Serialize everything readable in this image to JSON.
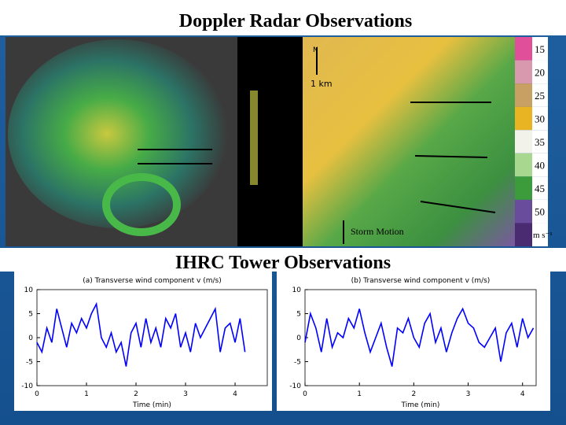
{
  "title": "Doppler Radar Observations",
  "radar": {
    "north": "N",
    "scale": "1 km",
    "storm_motion": "Storm Motion",
    "legend": {
      "labels": [
        "15",
        "20",
        "25",
        "30",
        "35",
        "40",
        "45",
        "50"
      ],
      "colors": [
        "#e0509a",
        "#d898ae",
        "#c8a064",
        "#e8b424",
        "#f2f2ea",
        "#a8d890",
        "#3c9c3c",
        "#6a4c9c"
      ],
      "unit": "m s⁻¹"
    }
  },
  "subtitle": "IHRC Tower Observations",
  "chart_data": [
    {
      "type": "line",
      "title": "(a) Transverse wind component v (m/s)",
      "x_label": "Time (min)",
      "x": [
        0,
        0.1,
        0.2,
        0.3,
        0.4,
        0.5,
        0.6,
        0.7,
        0.8,
        0.9,
        1,
        1.1,
        1.2,
        1.3,
        1.4,
        1.5,
        1.6,
        1.7,
        1.8,
        1.9,
        2,
        2.1,
        2.2,
        2.3,
        2.4,
        2.5,
        2.6,
        2.7,
        2.8,
        2.9,
        3,
        3.1,
        3.2,
        3.3,
        3.4,
        3.5,
        3.6,
        3.7,
        3.8,
        3.9,
        4,
        4.1,
        4.2
      ],
      "series": [
        {
          "name": "v",
          "color": "#0000ff",
          "values": [
            -1,
            -3,
            2,
            -1,
            6,
            2,
            -2,
            3,
            1,
            4,
            2,
            5,
            7,
            0,
            -2,
            1,
            -3,
            -1,
            -6,
            1,
            3,
            -2,
            4,
            -1,
            2,
            -2,
            4,
            2,
            5,
            -2,
            1,
            -3,
            3,
            0,
            2,
            4,
            6,
            -3,
            2,
            3,
            -1,
            4,
            -3
          ]
        }
      ],
      "xlim": [
        0,
        4.65
      ],
      "xticks": [
        0,
        1,
        2,
        3,
        4
      ],
      "ylim": [
        -10,
        10
      ],
      "yticks": [
        10,
        5,
        0,
        -5,
        -10
      ]
    },
    {
      "type": "line",
      "title": "(b) Transverse wind component v (m/s)",
      "x_label": "Time (min)",
      "x": [
        0,
        0.1,
        0.2,
        0.3,
        0.4,
        0.5,
        0.6,
        0.7,
        0.8,
        0.9,
        1,
        1.1,
        1.2,
        1.3,
        1.4,
        1.5,
        1.6,
        1.7,
        1.8,
        1.9,
        2,
        2.1,
        2.2,
        2.3,
        2.4,
        2.5,
        2.6,
        2.7,
        2.8,
        2.9,
        3,
        3.1,
        3.2,
        3.3,
        3.4,
        3.5,
        3.6,
        3.7,
        3.8,
        3.9,
        4,
        4.1,
        4.2
      ],
      "series": [
        {
          "name": "v",
          "color": "#0000ff",
          "values": [
            -1,
            5,
            2,
            -3,
            4,
            -2,
            1,
            0,
            4,
            2,
            6,
            1,
            -3,
            0,
            3,
            -2,
            -6,
            2,
            1,
            4,
            0,
            -2,
            3,
            5,
            -1,
            2,
            -3,
            1,
            4,
            6,
            3,
            2,
            -1,
            -2,
            0,
            2,
            -5,
            1,
            3,
            -2,
            4,
            0,
            2
          ]
        }
      ],
      "xlim": [
        0,
        4.25
      ],
      "xticks": [
        0,
        1,
        2,
        3,
        4
      ],
      "ylim": [
        -10,
        10
      ],
      "yticks": [
        10,
        5,
        0,
        -5,
        -10
      ]
    }
  ]
}
